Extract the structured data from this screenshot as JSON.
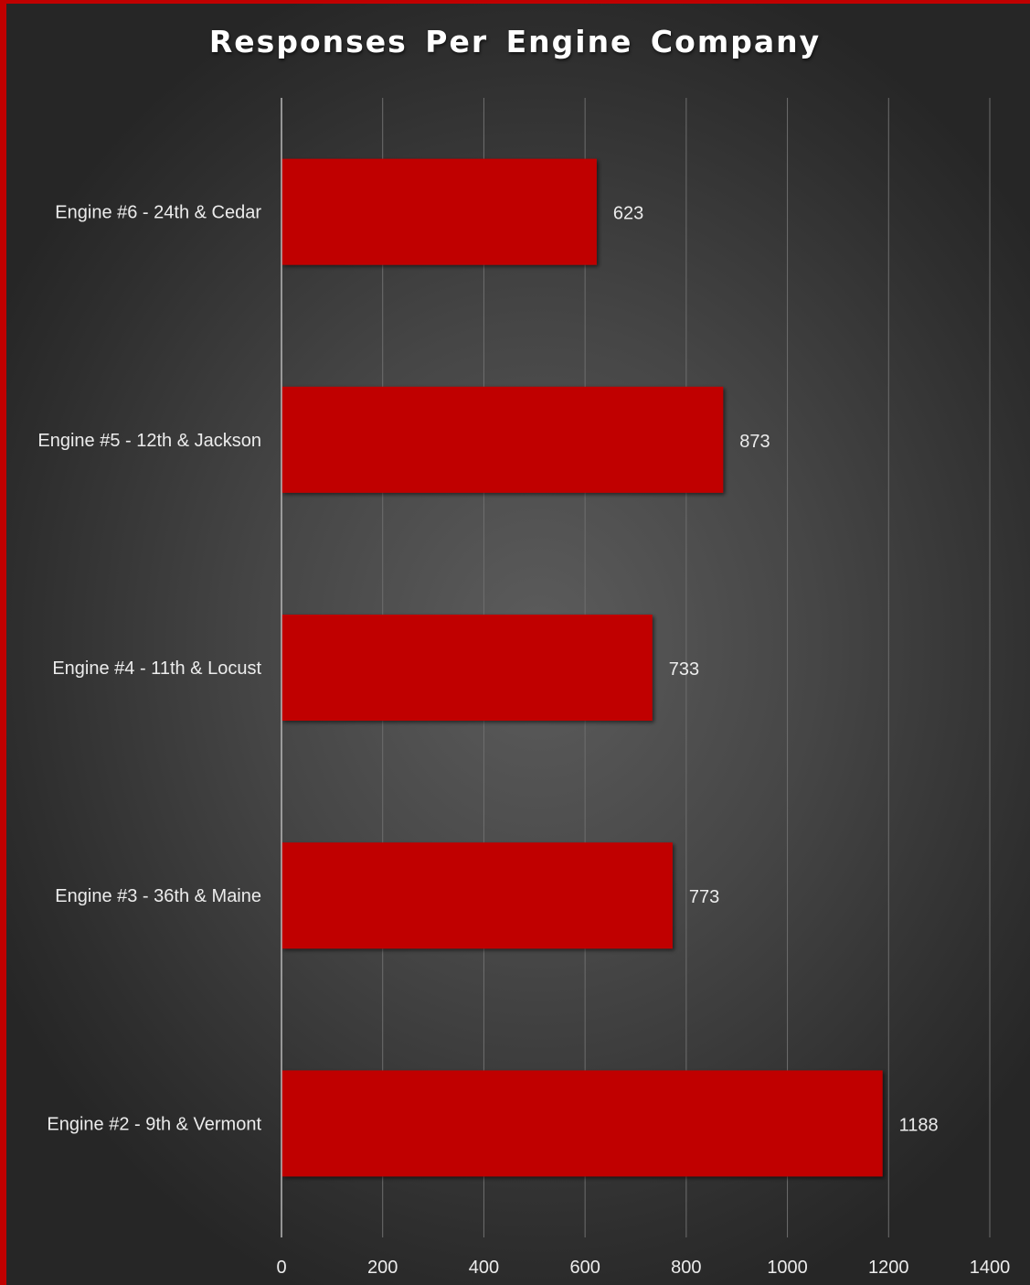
{
  "chart_data": {
    "type": "bar",
    "orientation": "horizontal",
    "title": "Responses Per Engine Company",
    "categories": [
      "Engine #6 - 24th & Cedar",
      "Engine #5 - 12th & Jackson",
      "Engine #4 - 11th & Locust",
      "Engine #3 - 36th & Maine",
      "Engine #2 - 9th & Vermont"
    ],
    "values": [
      623,
      873,
      733,
      773,
      1188
    ],
    "data_labels": [
      "623",
      "873",
      "733",
      "773",
      "1188"
    ],
    "xlim": [
      0,
      1400
    ],
    "xticks": [
      0,
      200,
      400,
      600,
      800,
      1000,
      1200,
      1400
    ],
    "xtick_labels": [
      "0",
      "200",
      "400",
      "600",
      "800",
      "1000",
      "1200",
      "1400"
    ],
    "xlabel": "",
    "ylabel": "",
    "grid": true,
    "legend": "none",
    "colors": {
      "bar": "#c00000",
      "frame_accent": "#c00000",
      "background": "#4a4a4a",
      "text": "#ececec",
      "gridline": "#6e6e6e"
    }
  }
}
